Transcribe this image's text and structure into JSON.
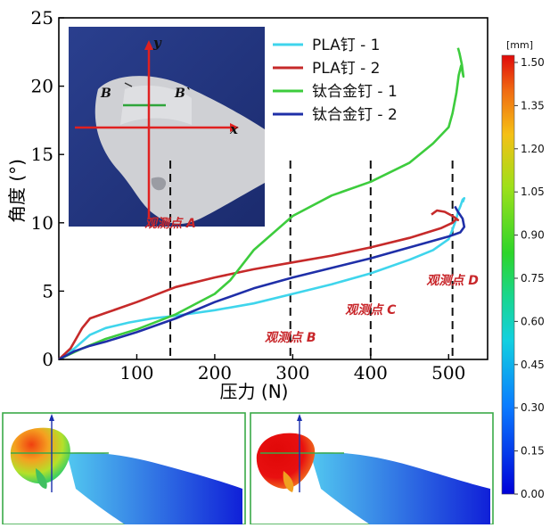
{
  "chart_data": {
    "type": "line",
    "title": "",
    "xlabel": "压力 (N)",
    "ylabel": "角度 (°)",
    "xlim": [
      0,
      550
    ],
    "ylim": [
      0,
      25
    ],
    "xticks": [
      100,
      200,
      300,
      400,
      500
    ],
    "yticks": [
      0,
      5,
      10,
      15,
      20,
      25
    ],
    "legend_position": "top-right",
    "series": [
      {
        "name": "PLA钉 - 1",
        "color": "#3fd5ec",
        "x": [
          0,
          20,
          40,
          60,
          90,
          120,
          150,
          200,
          250,
          300,
          350,
          400,
          450,
          480,
          500,
          505,
          510,
          512,
          515,
          518,
          520,
          518
        ],
        "y": [
          0,
          0.8,
          1.8,
          2.3,
          2.7,
          3.0,
          3.2,
          3.6,
          4.1,
          4.8,
          5.5,
          6.3,
          7.3,
          8.0,
          8.8,
          9.5,
          10.3,
          10.8,
          11.2,
          11.7,
          11.8,
          11.5
        ]
      },
      {
        "name": "PLA钉 - 2",
        "color": "#c62a2a",
        "x": [
          0,
          15,
          25,
          30,
          40,
          60,
          100,
          150,
          200,
          250,
          300,
          350,
          400,
          450,
          490,
          505,
          510,
          512,
          505,
          495,
          485,
          478
        ],
        "y": [
          0,
          0.8,
          1.8,
          2.3,
          3.0,
          3.4,
          4.2,
          5.3,
          6.0,
          6.6,
          7.1,
          7.6,
          8.2,
          8.9,
          9.6,
          10.0,
          10.3,
          10.2,
          10.5,
          10.8,
          10.9,
          10.6
        ]
      },
      {
        "name": "钛合金钉 - 1",
        "color": "#3dcc3d",
        "x": [
          0,
          30,
          60,
          100,
          150,
          200,
          220,
          250,
          300,
          350,
          400,
          450,
          480,
          500,
          505,
          510,
          513,
          516,
          519,
          517,
          514,
          512
        ],
        "y": [
          0,
          0.8,
          1.5,
          2.2,
          3.3,
          4.8,
          5.8,
          8.0,
          10.5,
          12.0,
          13.0,
          14.4,
          15.8,
          17.0,
          18.0,
          19.5,
          20.8,
          21.5,
          20.7,
          21.6,
          22.4,
          22.8
        ]
      },
      {
        "name": "钛合金钉 - 2",
        "color": "#1f2fa8",
        "x": [
          0,
          20,
          40,
          60,
          100,
          150,
          200,
          250,
          300,
          350,
          400,
          450,
          500,
          515,
          520,
          518,
          512,
          508
        ],
        "y": [
          0,
          0.6,
          1.0,
          1.3,
          2.0,
          3.0,
          4.2,
          5.2,
          6.0,
          6.7,
          7.4,
          8.2,
          9.0,
          9.3,
          9.7,
          10.3,
          10.8,
          11.2
        ]
      }
    ],
    "vlines": [
      {
        "x": 143,
        "label": "观测点 A"
      },
      {
        "x": 297,
        "label": "观测点 B"
      },
      {
        "x": 400,
        "label": "观测点 C"
      },
      {
        "x": 505,
        "label": "观测点 D"
      }
    ],
    "colorbar": {
      "unit": "[mm]",
      "min": 0.0,
      "max": 1.5,
      "ticks": [
        "1.50",
        "1.35",
        "1.20",
        "1.05",
        "0.90",
        "0.75",
        "0.60",
        "0.45",
        "0.30",
        "0.15",
        "0.00"
      ]
    },
    "inset": {
      "axis_labels": {
        "x": "x",
        "y": "y"
      },
      "section_labels": {
        "left": "B",
        "right": "B`"
      }
    }
  }
}
